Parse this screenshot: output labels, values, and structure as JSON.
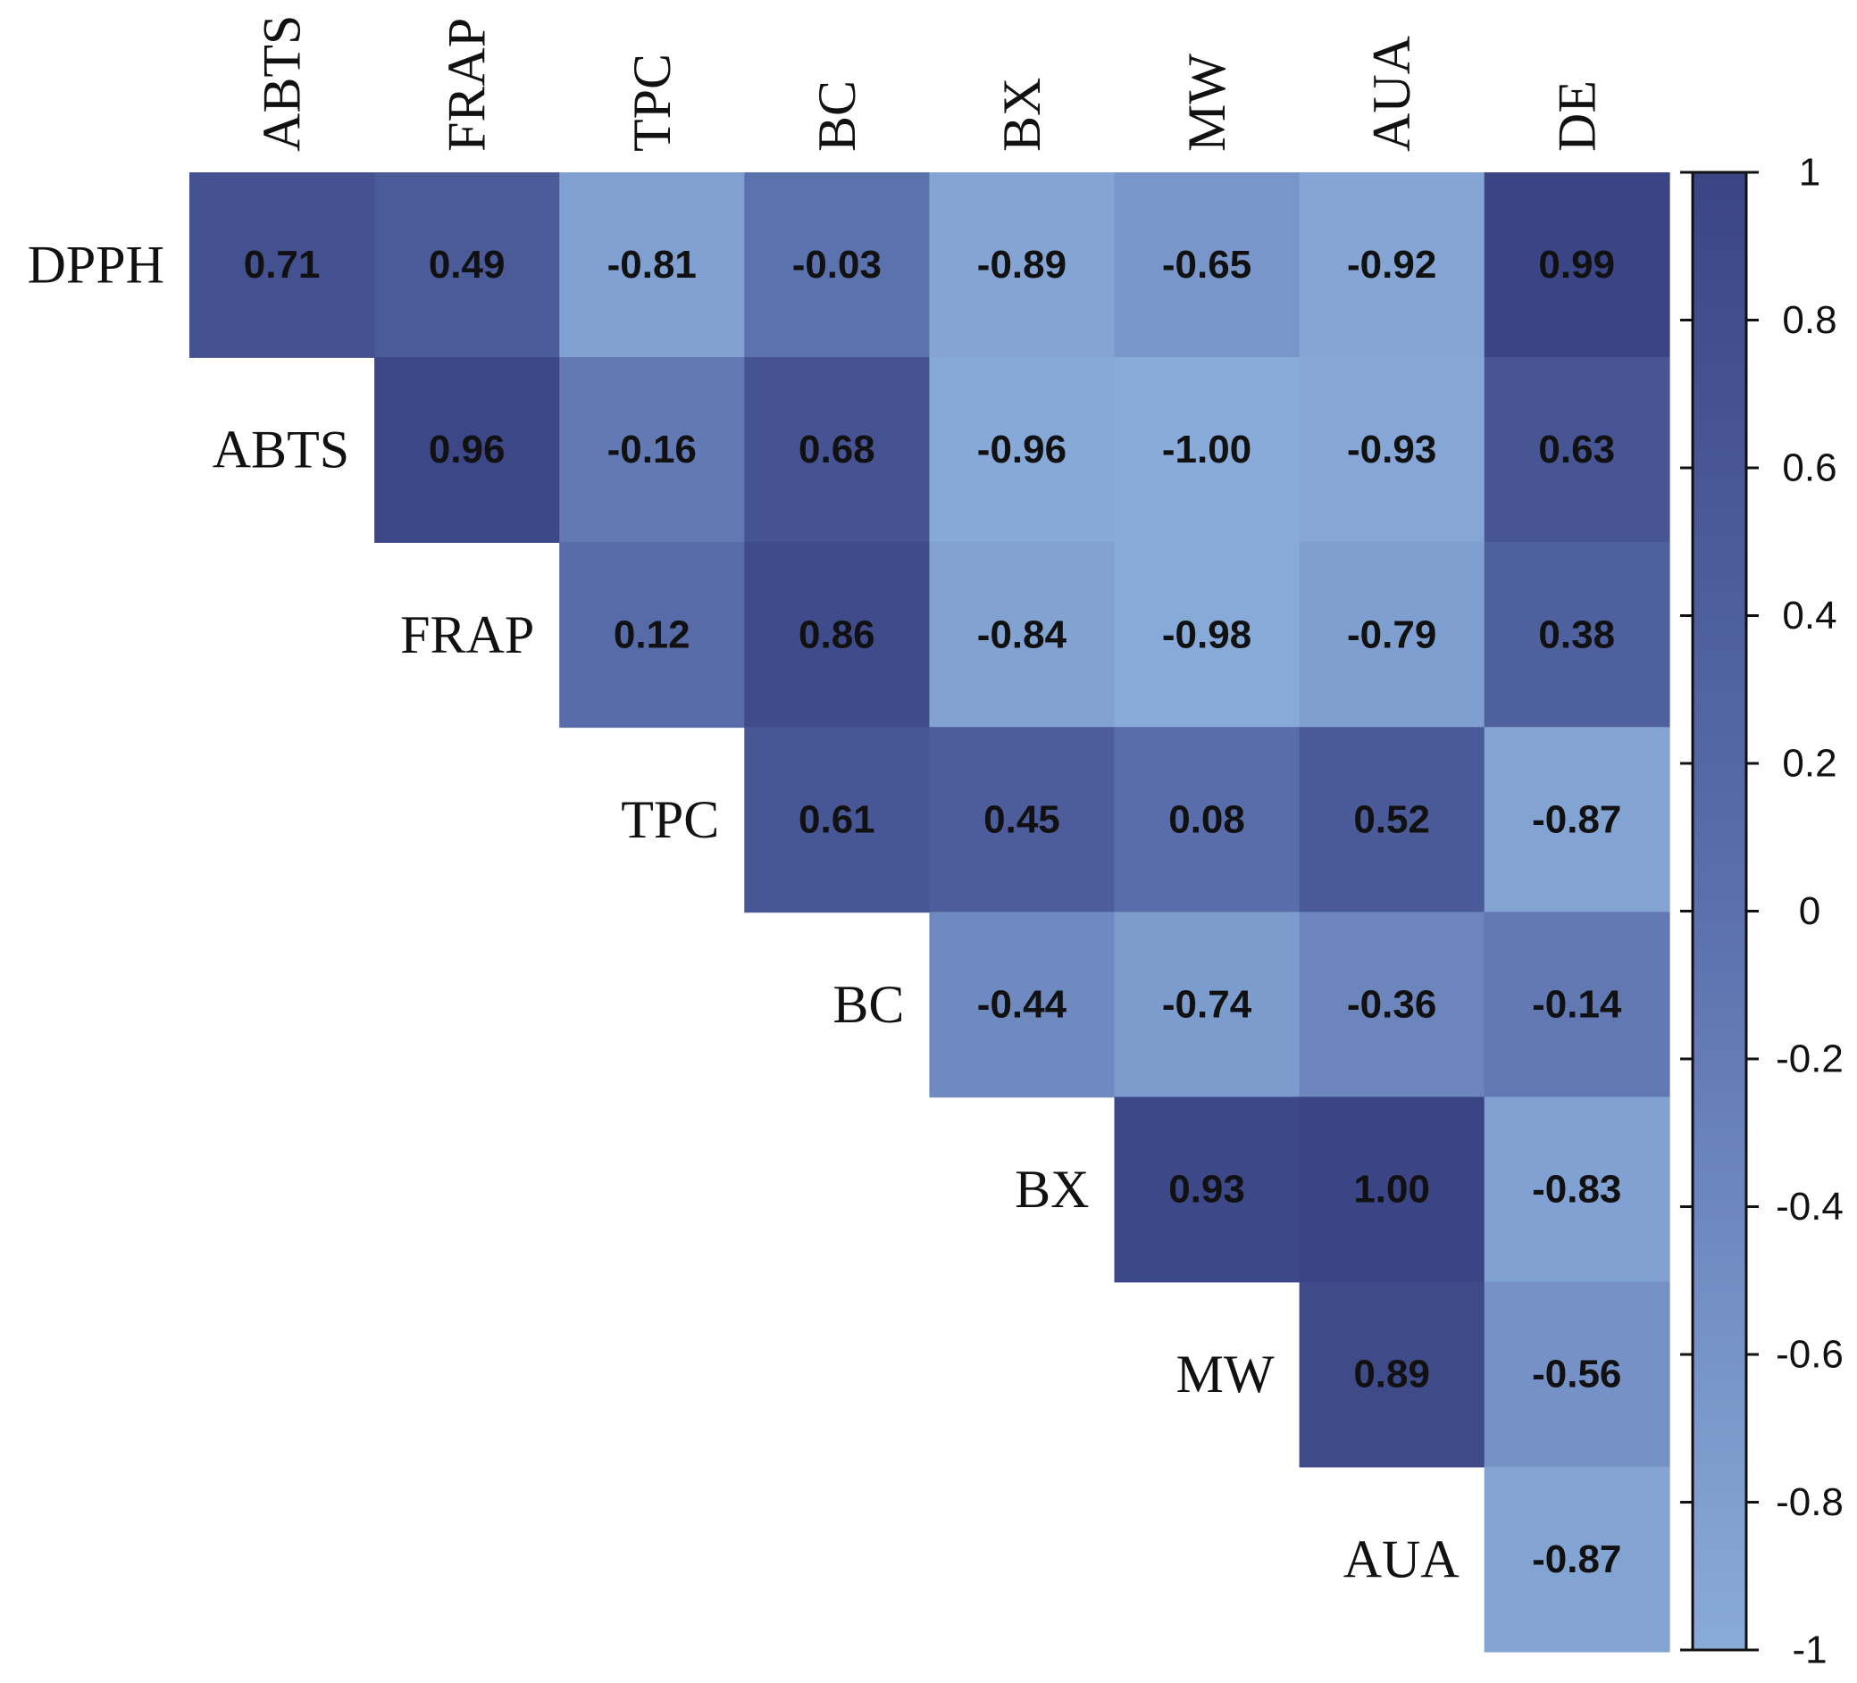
{
  "chart_data": {
    "type": "heatmap",
    "title": "",
    "subtitle": "",
    "xlabel": "",
    "ylabel": "",
    "matrix_shape": "upper-triangular",
    "column_labels": [
      "ABTS",
      "FRAP",
      "TPC",
      "BC",
      "BX",
      "MW",
      "AUA",
      "DE"
    ],
    "row_labels": [
      "DPPH",
      "ABTS",
      "FRAP",
      "TPC",
      "BC",
      "BX",
      "MW",
      "AUA"
    ],
    "values": [
      [
        0.71,
        0.49,
        -0.81,
        -0.03,
        -0.89,
        -0.65,
        -0.92,
        0.99
      ],
      [
        null,
        0.96,
        -0.16,
        0.68,
        -0.96,
        -1.0,
        -0.93,
        0.63
      ],
      [
        null,
        null,
        0.12,
        0.86,
        -0.84,
        -0.98,
        -0.79,
        0.38
      ],
      [
        null,
        null,
        null,
        0.61,
        0.45,
        0.08,
        0.52,
        -0.87
      ],
      [
        null,
        null,
        null,
        null,
        -0.44,
        -0.74,
        -0.36,
        -0.14
      ],
      [
        null,
        null,
        null,
        null,
        null,
        0.93,
        1.0,
        -0.83
      ],
      [
        null,
        null,
        null,
        null,
        null,
        null,
        0.89,
        -0.56
      ],
      [
        null,
        null,
        null,
        null,
        null,
        null,
        null,
        -0.87
      ]
    ],
    "value_labels": [
      [
        "0.71",
        "0.49",
        "-0.81",
        "-0.03",
        "-0.89",
        "-0.65",
        "-0.92",
        "0.99"
      ],
      [
        "",
        "0.96",
        "-0.16",
        "0.68",
        "-0.96",
        "-1.00",
        "-0.93",
        "0.63"
      ],
      [
        "",
        "",
        "0.12",
        "0.86",
        "-0.84",
        "-0.98",
        "-0.79",
        "0.38"
      ],
      [
        "",
        "",
        "",
        "0.61",
        "0.45",
        "0.08",
        "0.52",
        "-0.87"
      ],
      [
        "",
        "",
        "",
        "",
        "-0.44",
        "-0.74",
        "-0.36",
        "-0.14"
      ],
      [
        "",
        "",
        "",
        "",
        "",
        "0.93",
        "1.00",
        "-0.83"
      ],
      [
        "",
        "",
        "",
        "",
        "",
        "",
        "0.89",
        "-0.56"
      ],
      [
        "",
        "",
        "",
        "",
        "",
        "",
        "",
        "-0.87"
      ]
    ],
    "colorbar": {
      "range": [
        -1,
        1
      ],
      "ticks": [
        1,
        0.8,
        0.6,
        0.4,
        0.2,
        0,
        -0.2,
        -0.4,
        -0.6,
        -0.8,
        -1
      ],
      "tick_labels": [
        "1",
        "0.8",
        "0.6",
        "0.4",
        "0.2",
        "0",
        "-0.2",
        "-0.4",
        "-0.6",
        "-0.8",
        "-1"
      ],
      "low_color": "#89abd9",
      "mid_color": "#5b70ad",
      "high_color": "#3b4585",
      "placement": "right"
    },
    "legend": "none",
    "grid": false
  }
}
